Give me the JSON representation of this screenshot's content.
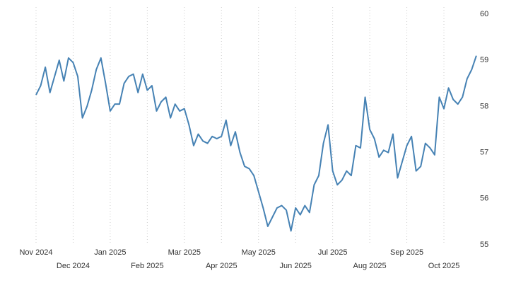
{
  "chart_data": {
    "type": "line",
    "categories": [
      "Nov 2024",
      null,
      null,
      null,
      null,
      null,
      null,
      null,
      "Dec 2024",
      null,
      null,
      null,
      null,
      null,
      null,
      null,
      "Jan 2025",
      null,
      null,
      null,
      null,
      null,
      null,
      null,
      "Feb 2025",
      null,
      null,
      null,
      null,
      null,
      null,
      null,
      "Mar 2025",
      null,
      null,
      null,
      null,
      null,
      null,
      null,
      "Apr 2025",
      null,
      null,
      null,
      null,
      null,
      null,
      null,
      "May 2025",
      null,
      null,
      null,
      null,
      null,
      null,
      null,
      "Jun 2025",
      null,
      null,
      null,
      null,
      null,
      null,
      null,
      "Jul 2025",
      null,
      null,
      null,
      null,
      null,
      null,
      null,
      "Aug 2025",
      null,
      null,
      null,
      null,
      null,
      null,
      null,
      "Sep 2025",
      null,
      null,
      null,
      null,
      null,
      null,
      null,
      "Oct 2025",
      null,
      null,
      null,
      null,
      null,
      null,
      null
    ],
    "values": [
      58.25,
      58.45,
      58.85,
      58.3,
      58.65,
      59.0,
      58.55,
      59.05,
      58.95,
      58.65,
      57.75,
      58.0,
      58.35,
      58.8,
      59.05,
      58.5,
      57.9,
      58.05,
      58.05,
      58.5,
      58.65,
      58.7,
      58.3,
      58.7,
      58.35,
      58.45,
      57.9,
      58.1,
      58.2,
      57.75,
      58.05,
      57.9,
      57.95,
      57.6,
      57.15,
      57.4,
      57.25,
      57.2,
      57.35,
      57.3,
      57.35,
      57.7,
      57.15,
      57.45,
      57.0,
      56.7,
      56.65,
      56.5,
      56.15,
      55.8,
      55.4,
      55.6,
      55.8,
      55.85,
      55.75,
      55.3,
      55.8,
      55.65,
      55.85,
      55.7,
      56.3,
      56.5,
      57.2,
      57.6,
      56.6,
      56.3,
      56.4,
      56.6,
      56.5,
      57.15,
      57.1,
      58.2,
      57.5,
      57.3,
      56.9,
      57.05,
      57.0,
      57.4,
      56.45,
      56.8,
      57.15,
      57.35,
      56.6,
      56.7,
      57.2,
      57.1,
      56.95,
      58.2,
      57.95,
      58.4,
      58.15,
      58.05,
      58.2,
      58.6,
      58.8,
      59.1
    ],
    "color": "#4682b4",
    "ylim": [
      55,
      60
    ],
    "yticks": [
      55,
      56,
      57,
      58,
      59,
      60
    ],
    "grid": true
  }
}
